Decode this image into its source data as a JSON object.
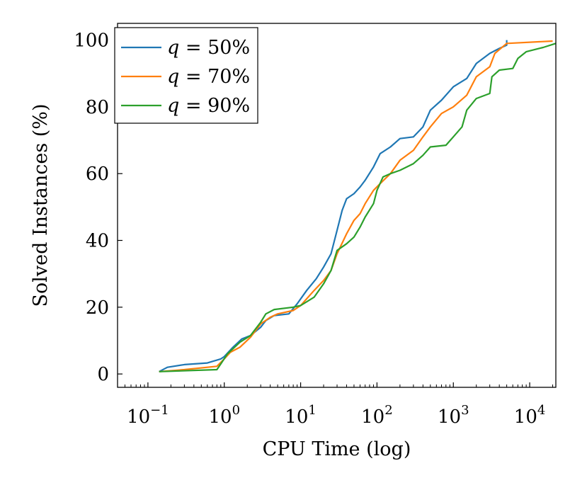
{
  "chart_data": {
    "type": "line",
    "title": "",
    "xlabel": "CPU Time (log)",
    "ylabel": "Solved Instances (%)",
    "x_scale": "log",
    "xlim": [
      0.04,
      22000
    ],
    "ylim": [
      -4,
      105
    ],
    "grid": false,
    "legend": "top-left",
    "x_ticks": [
      {
        "value": 0.1,
        "base": "10",
        "exp": "−1"
      },
      {
        "value": 1,
        "base": "10",
        "exp": "0"
      },
      {
        "value": 10,
        "base": "10",
        "exp": "1"
      },
      {
        "value": 100,
        "base": "10",
        "exp": "2"
      },
      {
        "value": 1000,
        "base": "10",
        "exp": "3"
      },
      {
        "value": 10000,
        "base": "10",
        "exp": "4"
      }
    ],
    "y_ticks": [
      0,
      20,
      40,
      60,
      80,
      100
    ],
    "series": [
      {
        "name": "q = 50%",
        "label_var": "q",
        "label_eq": " = 50%",
        "color": "#1f77b4",
        "points": [
          [
            0.14,
            0.7
          ],
          [
            0.18,
            2.0
          ],
          [
            0.3,
            2.8
          ],
          [
            0.6,
            3.3
          ],
          [
            0.9,
            4.5
          ],
          [
            1.0,
            5.2
          ],
          [
            1.3,
            8.0
          ],
          [
            1.7,
            10.5
          ],
          [
            2.2,
            11.5
          ],
          [
            3.0,
            14.0
          ],
          [
            3.5,
            16.0
          ],
          [
            4.5,
            17.5
          ],
          [
            7,
            18.0
          ],
          [
            9,
            21.0
          ],
          [
            12,
            25.0
          ],
          [
            16,
            28.5
          ],
          [
            20,
            32.0
          ],
          [
            25,
            36.0
          ],
          [
            30,
            43.0
          ],
          [
            35,
            49.0
          ],
          [
            40,
            52.5
          ],
          [
            50,
            54.0
          ],
          [
            60,
            56.0
          ],
          [
            70,
            58.0
          ],
          [
            90,
            62.0
          ],
          [
            110,
            66.0
          ],
          [
            150,
            68.0
          ],
          [
            200,
            70.5
          ],
          [
            300,
            71.0
          ],
          [
            400,
            74.0
          ],
          [
            500,
            79.0
          ],
          [
            700,
            82.0
          ],
          [
            1000,
            86.0
          ],
          [
            1500,
            88.5
          ],
          [
            2000,
            93.0
          ],
          [
            3000,
            96.0
          ],
          [
            4000,
            97.5
          ],
          [
            5000,
            98.5
          ],
          [
            5000,
            100
          ]
        ]
      },
      {
        "name": "q = 70%",
        "label_var": "q",
        "label_eq": " = 70%",
        "color": "#ff7f0e",
        "points": [
          [
            0.14,
            0.7
          ],
          [
            0.3,
            1.3
          ],
          [
            0.8,
            2.3
          ],
          [
            1.0,
            4.5
          ],
          [
            1.2,
            6.5
          ],
          [
            1.6,
            8.0
          ],
          [
            2.2,
            11.0
          ],
          [
            3.0,
            15.0
          ],
          [
            4.0,
            17.0
          ],
          [
            5,
            18.0
          ],
          [
            8,
            19.0
          ],
          [
            10,
            20.5
          ],
          [
            15,
            25.0
          ],
          [
            20,
            28.0
          ],
          [
            25,
            31.0
          ],
          [
            30,
            36.0
          ],
          [
            40,
            42.0
          ],
          [
            50,
            46.0
          ],
          [
            60,
            48.0
          ],
          [
            70,
            51.0
          ],
          [
            90,
            55.0
          ],
          [
            110,
            57.0
          ],
          [
            150,
            60.0
          ],
          [
            200,
            64.0
          ],
          [
            300,
            67.0
          ],
          [
            400,
            71.0
          ],
          [
            500,
            74.0
          ],
          [
            700,
            78.0
          ],
          [
            1000,
            80.0
          ],
          [
            1500,
            83.5
          ],
          [
            2000,
            89.0
          ],
          [
            3000,
            92.0
          ],
          [
            3500,
            96.0
          ],
          [
            5000,
            99.0
          ],
          [
            20000,
            99.7
          ]
        ]
      },
      {
        "name": "q = 90%",
        "label_var": "q",
        "label_eq": " = 90%",
        "color": "#2ca02c",
        "points": [
          [
            0.14,
            0.7
          ],
          [
            0.8,
            1.3
          ],
          [
            0.9,
            3.0
          ],
          [
            1.1,
            6.0
          ],
          [
            1.6,
            9.5
          ],
          [
            2.2,
            11.5
          ],
          [
            3.0,
            15.5
          ],
          [
            3.5,
            18.0
          ],
          [
            4.5,
            19.3
          ],
          [
            8,
            20.0
          ],
          [
            10,
            20.5
          ],
          [
            15,
            23.0
          ],
          [
            20,
            27.0
          ],
          [
            25,
            31.0
          ],
          [
            30,
            37.0
          ],
          [
            40,
            39.0
          ],
          [
            50,
            41.0
          ],
          [
            60,
            44.0
          ],
          [
            70,
            47.0
          ],
          [
            90,
            51.0
          ],
          [
            100,
            55.0
          ],
          [
            120,
            59.0
          ],
          [
            150,
            60.0
          ],
          [
            200,
            61.0
          ],
          [
            300,
            63.0
          ],
          [
            400,
            65.5
          ],
          [
            500,
            68.0
          ],
          [
            800,
            68.5
          ],
          [
            1000,
            71.0
          ],
          [
            1300,
            74.0
          ],
          [
            1500,
            79.0
          ],
          [
            2000,
            82.5
          ],
          [
            3000,
            84.0
          ],
          [
            3200,
            89.0
          ],
          [
            4000,
            91.0
          ],
          [
            6000,
            91.5
          ],
          [
            7000,
            94.5
          ],
          [
            9000,
            96.5
          ],
          [
            15000,
            97.8
          ],
          [
            22000,
            99.0
          ]
        ]
      }
    ]
  }
}
